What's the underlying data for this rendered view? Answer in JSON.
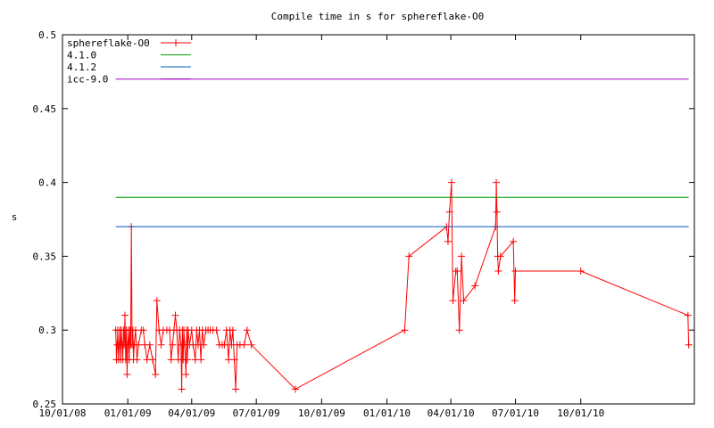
{
  "chart_data": {
    "type": "line",
    "title": "Compile time in s for sphereflake-O0",
    "xlabel": "",
    "ylabel": "s",
    "ylim": [
      0.25,
      0.5
    ],
    "xlim": [
      "2008-10-01",
      "2011-03-10"
    ],
    "grid": false,
    "legend_position": "top-left",
    "yticks": [
      0.25,
      0.3,
      0.35,
      0.4,
      0.45,
      0.5
    ],
    "ytick_labels": [
      "0.25",
      "0.3",
      "0.35",
      "0.4",
      "0.45",
      "0.5"
    ],
    "xticks": [
      "2008-10-01",
      "2009-01-01",
      "2009-04-01",
      "2009-07-01",
      "2009-10-01",
      "2010-01-01",
      "2010-04-01",
      "2010-07-01",
      "2010-10-01"
    ],
    "xtick_labels": [
      "10/01/08",
      "01/01/09",
      "04/01/09",
      "07/01/09",
      "10/01/09",
      "01/01/10",
      "04/01/10",
      "07/01/10",
      "10/01/10"
    ],
    "series": [
      {
        "name": "sphereflake-O0",
        "color": "#ff0000",
        "marker": "plus",
        "points": [
          [
            "2008-12-15",
            0.3
          ],
          [
            "2008-12-16",
            0.28
          ],
          [
            "2008-12-17",
            0.29
          ],
          [
            "2008-12-18",
            0.3
          ],
          [
            "2008-12-19",
            0.28
          ],
          [
            "2008-12-20",
            0.29
          ],
          [
            "2008-12-21",
            0.3
          ],
          [
            "2008-12-22",
            0.28
          ],
          [
            "2008-12-23",
            0.3
          ],
          [
            "2008-12-24",
            0.29
          ],
          [
            "2008-12-25",
            0.28
          ],
          [
            "2008-12-26",
            0.3
          ],
          [
            "2008-12-27",
            0.29
          ],
          [
            "2008-12-28",
            0.31
          ],
          [
            "2008-12-29",
            0.28
          ],
          [
            "2008-12-30",
            0.3
          ],
          [
            "2008-12-31",
            0.27
          ],
          [
            "2009-01-01",
            0.29
          ],
          [
            "2009-01-02",
            0.3
          ],
          [
            "2009-01-03",
            0.28
          ],
          [
            "2009-01-04",
            0.3
          ],
          [
            "2009-01-05",
            0.29
          ],
          [
            "2009-01-06",
            0.37
          ],
          [
            "2009-01-07",
            0.29
          ],
          [
            "2009-01-08",
            0.3
          ],
          [
            "2009-01-09",
            0.28
          ],
          [
            "2009-01-10",
            0.29
          ],
          [
            "2009-01-12",
            0.3
          ],
          [
            "2009-01-14",
            0.28
          ],
          [
            "2009-01-16",
            0.29
          ],
          [
            "2009-01-20",
            0.3
          ],
          [
            "2009-01-23",
            0.3
          ],
          [
            "2009-01-25",
            0.29
          ],
          [
            "2009-01-28",
            0.28
          ],
          [
            "2009-02-01",
            0.29
          ],
          [
            "2009-02-05",
            0.28
          ],
          [
            "2009-02-09",
            0.27
          ],
          [
            "2009-02-11",
            0.32
          ],
          [
            "2009-02-14",
            0.3
          ],
          [
            "2009-02-17",
            0.29
          ],
          [
            "2009-02-20",
            0.3
          ],
          [
            "2009-02-25",
            0.3
          ],
          [
            "2009-03-01",
            0.3
          ],
          [
            "2009-03-03",
            0.28
          ],
          [
            "2009-03-05",
            0.29
          ],
          [
            "2009-03-07",
            0.3
          ],
          [
            "2009-03-09",
            0.31
          ],
          [
            "2009-03-11",
            0.3
          ],
          [
            "2009-03-13",
            0.28
          ],
          [
            "2009-03-15",
            0.3
          ],
          [
            "2009-03-17",
            0.29
          ],
          [
            "2009-03-18",
            0.26
          ],
          [
            "2009-03-19",
            0.3
          ],
          [
            "2009-03-20",
            0.28
          ],
          [
            "2009-03-21",
            0.3
          ],
          [
            "2009-03-22",
            0.29
          ],
          [
            "2009-03-24",
            0.27
          ],
          [
            "2009-03-25",
            0.3
          ],
          [
            "2009-03-26",
            0.28
          ],
          [
            "2009-03-27",
            0.3
          ],
          [
            "2009-03-29",
            0.29
          ],
          [
            "2009-04-01",
            0.3
          ],
          [
            "2009-04-03",
            0.29
          ],
          [
            "2009-04-06",
            0.28
          ],
          [
            "2009-04-08",
            0.3
          ],
          [
            "2009-04-10",
            0.29
          ],
          [
            "2009-04-12",
            0.3
          ],
          [
            "2009-04-14",
            0.28
          ],
          [
            "2009-04-16",
            0.3
          ],
          [
            "2009-04-18",
            0.29
          ],
          [
            "2009-04-21",
            0.3
          ],
          [
            "2009-04-24",
            0.3
          ],
          [
            "2009-04-27",
            0.3
          ],
          [
            "2009-05-01",
            0.3
          ],
          [
            "2009-05-06",
            0.3
          ],
          [
            "2009-05-10",
            0.29
          ],
          [
            "2009-05-14",
            0.29
          ],
          [
            "2009-05-17",
            0.29
          ],
          [
            "2009-05-20",
            0.3
          ],
          [
            "2009-05-23",
            0.28
          ],
          [
            "2009-05-25",
            0.3
          ],
          [
            "2009-05-27",
            0.29
          ],
          [
            "2009-05-29",
            0.3
          ],
          [
            "2009-05-31",
            0.28
          ],
          [
            "2009-06-02",
            0.26
          ],
          [
            "2009-06-04",
            0.29
          ],
          [
            "2009-06-08",
            0.29
          ],
          [
            "2009-06-14",
            0.29
          ],
          [
            "2009-06-18",
            0.3
          ],
          [
            "2009-06-24",
            0.29
          ],
          [
            "2009-08-25",
            0.26
          ],
          [
            "2010-01-26",
            0.3
          ],
          [
            "2010-02-01",
            0.35
          ],
          [
            "2010-03-26",
            0.37
          ],
          [
            "2010-03-28",
            0.36
          ],
          [
            "2010-03-30",
            0.38
          ],
          [
            "2010-04-02",
            0.4
          ],
          [
            "2010-04-04",
            0.32
          ],
          [
            "2010-04-08",
            0.34
          ],
          [
            "2010-04-10",
            0.34
          ],
          [
            "2010-04-13",
            0.3
          ],
          [
            "2010-04-16",
            0.35
          ],
          [
            "2010-04-19",
            0.32
          ],
          [
            "2010-05-05",
            0.33
          ],
          [
            "2010-06-03",
            0.37
          ],
          [
            "2010-06-04",
            0.4
          ],
          [
            "2010-06-05",
            0.38
          ],
          [
            "2010-06-06",
            0.35
          ],
          [
            "2010-06-07",
            0.34
          ],
          [
            "2010-06-10",
            0.35
          ],
          [
            "2010-06-28",
            0.36
          ],
          [
            "2010-06-30",
            0.32
          ],
          [
            "2010-07-01",
            0.34
          ],
          [
            "2010-10-01",
            0.34
          ],
          [
            "2011-03-01",
            0.31
          ],
          [
            "2011-03-02",
            0.29
          ]
        ]
      },
      {
        "name": "4.1.0",
        "color": "#00a000",
        "marker": "none",
        "points": [
          [
            "2008-12-15",
            0.39
          ],
          [
            "2011-03-02",
            0.39
          ]
        ]
      },
      {
        "name": "4.1.2",
        "color": "#0060c0",
        "marker": "none",
        "points": [
          [
            "2008-12-15",
            0.37
          ],
          [
            "2011-03-02",
            0.37
          ]
        ]
      },
      {
        "name": "icc-9.0",
        "color": "#a000c0",
        "marker": "none",
        "points": [
          [
            "2008-12-15",
            0.47
          ],
          [
            "2011-03-02",
            0.47
          ]
        ]
      }
    ]
  }
}
